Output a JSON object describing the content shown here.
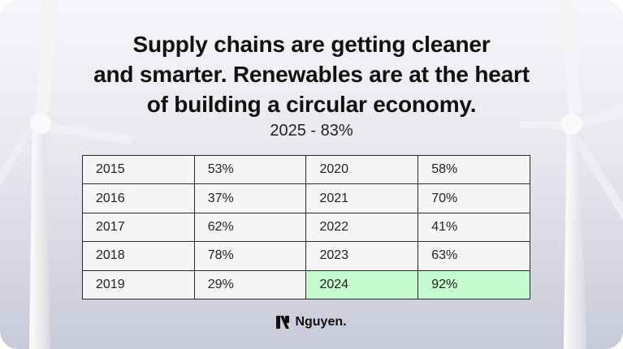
{
  "headline": {
    "line1": "Supply chains are getting cleaner",
    "line2": "and smarter. Renewables are at the heart",
    "line3": "of building a circular economy."
  },
  "subtitle": "2025 - 83%",
  "table": {
    "rows": [
      {
        "year_a": "2015",
        "value_a": "53%",
        "year_b": "2020",
        "value_b": "58%"
      },
      {
        "year_a": "2016",
        "value_a": "37%",
        "year_b": "2021",
        "value_b": "70%"
      },
      {
        "year_a": "2017",
        "value_a": "62%",
        "year_b": "2022",
        "value_b": "41%"
      },
      {
        "year_a": "2018",
        "value_a": "78%",
        "year_b": "2023",
        "value_b": "63%"
      },
      {
        "year_a": "2019",
        "value_a": "29%",
        "year_b": "2024",
        "value_b": "92%"
      }
    ],
    "highlight_color": "#c6fbcf"
  },
  "brand": {
    "name": "Nguyen.",
    "logo_icon": "nguyen-logo-icon"
  }
}
